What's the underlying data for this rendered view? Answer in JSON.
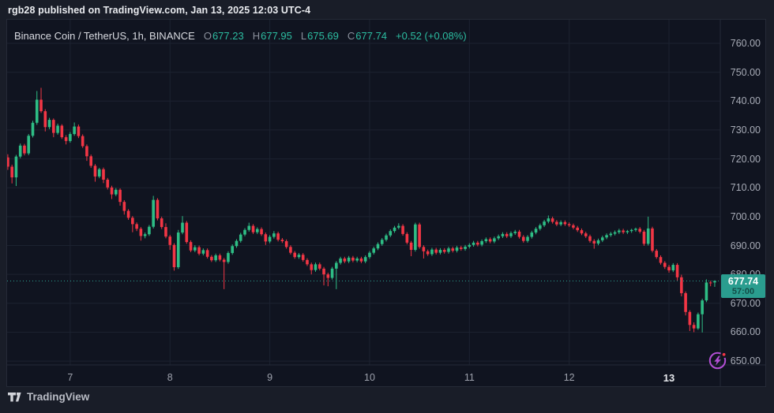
{
  "attribution": {
    "text": "rgb28 published on TradingView.com, Jan 13, 2025 12:03 UTC-4"
  },
  "legend": {
    "symbol_title": "Binance Coin / TetherUS, 1h, BINANCE",
    "ohlc": [
      {
        "label": "O",
        "value": "677.23"
      },
      {
        "label": "H",
        "value": "677.95"
      },
      {
        "label": "L",
        "value": "675.69"
      },
      {
        "label": "C",
        "value": "677.74"
      }
    ],
    "change": "+0.52 (+0.08%)"
  },
  "price_tag": {
    "price": "677.74",
    "countdown": "57:00"
  },
  "footer": {
    "brand": "TradingView"
  },
  "icons": {
    "pulse": "market-pulse-icon",
    "badge": "red-dot-badge",
    "logo": "tradingview-logo"
  },
  "colors": {
    "up": "#2ebd85",
    "down": "#f23645",
    "label_bg": "#2a9d8f",
    "grid": "#1c2230",
    "axis_border": "#252a37",
    "icon_purple": "#b44fd6",
    "badge_red": "#f23645"
  },
  "chart_data": {
    "type": "candlestick",
    "symbol": "Binance Coin / TetherUS",
    "interval": "1h",
    "exchange": "BINANCE",
    "ylim": [
      650,
      760
    ],
    "y_ticks": [
      760,
      750,
      740,
      730,
      720,
      710,
      700,
      690,
      680,
      670,
      660,
      650
    ],
    "y_tick_labels": [
      "760.00",
      "750.00",
      "740.00",
      "730.00",
      "720.00",
      "710.00",
      "700.00",
      "690.00",
      "680.00",
      "670.00",
      "660.00",
      "650.00"
    ],
    "x_ticks": [
      {
        "label": "7",
        "index": 15,
        "bold": false
      },
      {
        "label": "8",
        "index": 39,
        "bold": false
      },
      {
        "label": "9",
        "index": 63,
        "bold": false
      },
      {
        "label": "10",
        "index": 87,
        "bold": false
      },
      {
        "label": "11",
        "index": 111,
        "bold": false
      },
      {
        "label": "12",
        "index": 135,
        "bold": false
      },
      {
        "label": "13",
        "index": 159,
        "bold": true
      }
    ],
    "current_price": 677.74,
    "grid": true,
    "candles": [
      [
        720.5,
        721.6,
        716.2,
        717.3
      ],
      [
        717.3,
        718.0,
        711.5,
        713.6
      ],
      [
        713.6,
        721.4,
        710.6,
        720.8
      ],
      [
        720.8,
        725.3,
        720.2,
        724.6
      ],
      [
        724.6,
        725.2,
        721.2,
        721.9
      ],
      [
        721.9,
        728.6,
        721.3,
        728.0
      ],
      [
        728.0,
        733.2,
        727.4,
        732.5
      ],
      [
        732.5,
        743.5,
        731.8,
        740.5
      ],
      [
        740.5,
        744.6,
        735.9,
        736.5
      ],
      [
        736.5,
        737.2,
        729.5,
        731.0
      ],
      [
        731.0,
        734.2,
        730.3,
        733.5
      ],
      [
        733.5,
        734.0,
        727.5,
        729.0
      ],
      [
        729.0,
        732.2,
        728.4,
        731.5
      ],
      [
        731.5,
        732.0,
        726.9,
        727.5
      ],
      [
        727.5,
        728.2,
        725.0,
        726.2
      ],
      [
        726.2,
        729.3,
        725.6,
        728.6
      ],
      [
        728.6,
        732.6,
        728.0,
        731.2
      ],
      [
        731.2,
        731.9,
        727.2,
        727.9
      ],
      [
        727.9,
        728.5,
        723.8,
        724.4
      ],
      [
        724.4,
        725.0,
        719.3,
        720.9
      ],
      [
        720.9,
        721.5,
        716.9,
        717.6
      ],
      [
        717.6,
        718.2,
        712.1,
        713.9
      ],
      [
        713.9,
        716.9,
        713.3,
        716.4
      ],
      [
        716.4,
        717.0,
        711.6,
        712.8
      ],
      [
        712.8,
        713.4,
        709.4,
        710.1
      ],
      [
        710.1,
        710.7,
        706.1,
        707.7
      ],
      [
        707.7,
        709.9,
        707.1,
        709.3
      ],
      [
        709.3,
        709.8,
        703.8,
        705.1
      ],
      [
        705.1,
        705.7,
        700.7,
        702.0
      ],
      [
        702.0,
        702.6,
        698.9,
        699.6
      ],
      [
        699.6,
        700.2,
        694.6,
        697.4
      ],
      [
        697.4,
        698.0,
        695.0,
        695.8
      ],
      [
        695.8,
        696.4,
        691.7,
        693.3
      ],
      [
        693.3,
        694.5,
        692.5,
        693.9
      ],
      [
        693.9,
        697.1,
        693.3,
        696.5
      ],
      [
        696.5,
        707.2,
        695.9,
        705.8
      ],
      [
        705.8,
        706.4,
        698.7,
        699.4
      ],
      [
        699.4,
        700.0,
        695.7,
        696.4
      ],
      [
        696.4,
        697.7,
        692.5,
        693.1
      ],
      [
        693.1,
        693.7,
        688.5,
        690.2
      ],
      [
        690.2,
        690.8,
        681.3,
        682.5
      ],
      [
        682.5,
        695.4,
        681.9,
        694.5
      ],
      [
        694.5,
        700.2,
        693.9,
        697.9
      ],
      [
        697.9,
        698.5,
        690.6,
        691.2
      ],
      [
        691.2,
        691.8,
        687.7,
        688.3
      ],
      [
        688.3,
        690.1,
        687.7,
        689.4
      ],
      [
        689.4,
        690.0,
        686.6,
        687.2
      ],
      [
        687.2,
        689.0,
        686.6,
        688.4
      ],
      [
        688.4,
        689.0,
        685.5,
        686.1
      ],
      [
        686.1,
        686.7,
        684.3,
        684.9
      ],
      [
        684.9,
        687.2,
        684.3,
        686.6
      ],
      [
        686.6,
        687.2,
        684.5,
        685.1
      ],
      [
        685.1,
        685.7,
        674.9,
        684.3
      ],
      [
        684.3,
        688.0,
        683.7,
        687.4
      ],
      [
        687.4,
        690.4,
        686.8,
        689.8
      ],
      [
        689.8,
        692.2,
        689.2,
        691.6
      ],
      [
        691.6,
        694.4,
        691.0,
        693.8
      ],
      [
        693.8,
        696.0,
        693.2,
        695.4
      ],
      [
        695.4,
        697.9,
        694.8,
        696.8
      ],
      [
        696.8,
        697.4,
        694.0,
        694.6
      ],
      [
        694.6,
        696.3,
        694.0,
        695.7
      ],
      [
        695.7,
        696.3,
        693.3,
        693.9
      ],
      [
        693.9,
        694.5,
        690.2,
        691.4
      ],
      [
        691.4,
        693.6,
        690.8,
        693.0
      ],
      [
        693.0,
        695.0,
        692.4,
        694.2
      ],
      [
        694.2,
        694.8,
        691.4,
        692.0
      ],
      [
        692.0,
        692.6,
        690.9,
        691.5
      ],
      [
        691.5,
        692.1,
        688.9,
        689.5
      ],
      [
        689.5,
        690.1,
        686.9,
        687.5
      ],
      [
        687.5,
        688.1,
        685.4,
        686.0
      ],
      [
        686.0,
        687.4,
        685.4,
        686.8
      ],
      [
        686.8,
        687.4,
        684.4,
        685.0
      ],
      [
        685.0,
        685.6,
        682.9,
        683.5
      ],
      [
        683.5,
        684.1,
        680.0,
        681.5
      ],
      [
        681.5,
        684.1,
        680.9,
        683.5
      ],
      [
        683.5,
        684.1,
        681.4,
        682.0
      ],
      [
        682.0,
        682.6,
        676.2,
        680.0
      ],
      [
        680.0,
        680.6,
        675.9,
        678.8
      ],
      [
        678.8,
        682.6,
        678.2,
        682.0
      ],
      [
        682.0,
        684.6,
        674.9,
        684.0
      ],
      [
        684.0,
        686.1,
        683.4,
        685.5
      ],
      [
        685.5,
        686.1,
        683.9,
        684.5
      ],
      [
        684.5,
        686.4,
        683.9,
        685.8
      ],
      [
        685.8,
        686.4,
        684.2,
        684.8
      ],
      [
        684.8,
        686.1,
        684.2,
        685.5
      ],
      [
        685.5,
        686.1,
        683.9,
        684.5
      ],
      [
        684.5,
        686.6,
        683.9,
        686.0
      ],
      [
        686.0,
        688.1,
        685.4,
        687.5
      ],
      [
        687.5,
        689.6,
        686.9,
        689.0
      ],
      [
        689.0,
        691.1,
        688.4,
        690.5
      ],
      [
        690.5,
        692.6,
        689.9,
        692.0
      ],
      [
        692.0,
        694.1,
        691.4,
        693.5
      ],
      [
        693.5,
        695.6,
        692.9,
        695.0
      ],
      [
        695.0,
        696.8,
        694.4,
        696.2
      ],
      [
        696.2,
        697.7,
        695.6,
        696.8
      ],
      [
        696.8,
        697.4,
        693.4,
        694.0
      ],
      [
        694.0,
        694.6,
        690.4,
        691.0
      ],
      [
        691.0,
        691.6,
        686.3,
        688.5
      ],
      [
        688.5,
        697.9,
        687.9,
        697.3
      ],
      [
        697.3,
        697.9,
        688.9,
        689.5
      ],
      [
        689.5,
        690.1,
        685.5,
        688.0
      ],
      [
        688.0,
        688.6,
        686.4,
        687.0
      ],
      [
        687.0,
        689.2,
        686.4,
        688.6
      ],
      [
        688.6,
        689.2,
        686.9,
        687.5
      ],
      [
        687.5,
        689.1,
        686.9,
        688.5
      ],
      [
        688.5,
        689.1,
        687.2,
        687.8
      ],
      [
        687.8,
        689.6,
        687.2,
        689.0
      ],
      [
        689.0,
        689.6,
        687.6,
        688.2
      ],
      [
        688.2,
        689.9,
        687.6,
        689.3
      ],
      [
        689.3,
        689.9,
        688.2,
        688.8
      ],
      [
        688.8,
        690.2,
        688.2,
        689.6
      ],
      [
        689.6,
        690.8,
        689.0,
        690.2
      ],
      [
        690.2,
        691.6,
        689.6,
        691.0
      ],
      [
        691.0,
        691.6,
        689.7,
        690.3
      ],
      [
        690.3,
        692.1,
        689.7,
        691.5
      ],
      [
        691.5,
        692.8,
        690.9,
        692.2
      ],
      [
        692.2,
        692.8,
        690.8,
        691.4
      ],
      [
        691.4,
        693.1,
        690.8,
        692.5
      ],
      [
        692.5,
        693.8,
        691.9,
        693.2
      ],
      [
        693.2,
        694.6,
        692.6,
        694.0
      ],
      [
        694.0,
        694.6,
        692.6,
        693.2
      ],
      [
        693.2,
        694.9,
        692.6,
        694.3
      ],
      [
        694.3,
        695.4,
        693.7,
        694.8
      ],
      [
        694.8,
        695.4,
        692.4,
        693.0
      ],
      [
        693.0,
        693.6,
        691.0,
        691.6
      ],
      [
        691.6,
        693.6,
        691.0,
        693.0
      ],
      [
        693.0,
        695.1,
        692.4,
        694.5
      ],
      [
        694.5,
        696.4,
        693.9,
        695.8
      ],
      [
        695.8,
        697.6,
        695.2,
        697.0
      ],
      [
        697.0,
        698.9,
        696.4,
        698.3
      ],
      [
        698.3,
        700.4,
        697.7,
        699.4
      ],
      [
        699.4,
        700.0,
        697.6,
        698.2
      ],
      [
        698.2,
        698.8,
        696.7,
        697.3
      ],
      [
        697.3,
        698.7,
        696.7,
        698.1
      ],
      [
        698.1,
        698.7,
        696.8,
        697.4
      ],
      [
        697.4,
        698.0,
        696.4,
        697.0
      ],
      [
        697.0,
        697.6,
        695.6,
        696.2
      ],
      [
        696.2,
        696.8,
        694.7,
        695.3
      ],
      [
        695.3,
        695.9,
        693.6,
        694.2
      ],
      [
        694.2,
        694.8,
        692.6,
        693.2
      ],
      [
        693.2,
        693.8,
        691.0,
        691.6
      ],
      [
        691.6,
        692.2,
        688.9,
        690.7
      ],
      [
        690.7,
        692.4,
        690.1,
        691.8
      ],
      [
        691.8,
        693.4,
        691.2,
        692.8
      ],
      [
        692.8,
        694.2,
        692.2,
        693.6
      ],
      [
        693.6,
        694.7,
        693.0,
        694.1
      ],
      [
        694.1,
        695.2,
        693.5,
        694.6
      ],
      [
        694.6,
        695.8,
        694.0,
        695.2
      ],
      [
        695.2,
        695.8,
        694.0,
        694.6
      ],
      [
        694.6,
        695.4,
        694.0,
        695.0
      ],
      [
        695.0,
        695.8,
        694.4,
        695.4
      ],
      [
        695.4,
        696.2,
        694.8,
        695.8
      ],
      [
        695.8,
        696.4,
        694.2,
        694.8
      ],
      [
        694.8,
        695.4,
        689.9,
        690.6
      ],
      [
        690.6,
        700.0,
        690.0,
        695.9
      ],
      [
        695.9,
        696.5,
        687.6,
        688.2
      ],
      [
        688.2,
        688.8,
        685.4,
        686.0
      ],
      [
        686.0,
        686.6,
        683.4,
        684.0
      ],
      [
        684.0,
        684.6,
        681.9,
        682.6
      ],
      [
        682.6,
        683.3,
        680.6,
        681.4
      ],
      [
        681.4,
        683.9,
        680.8,
        683.3
      ],
      [
        683.3,
        683.9,
        677.9,
        679.0
      ],
      [
        679.0,
        679.9,
        672.4,
        673.5
      ],
      [
        673.5,
        674.1,
        665.8,
        667.0
      ],
      [
        667.0,
        667.6,
        660.4,
        662.5
      ],
      [
        662.5,
        663.4,
        660.0,
        661.3
      ],
      [
        661.3,
        666.8,
        660.8,
        666.2
      ],
      [
        666.2,
        671.6,
        659.9,
        671.0
      ],
      [
        671.0,
        678.3,
        670.4,
        677.2
      ],
      [
        677.2,
        677.8,
        675.9,
        677.0
      ],
      [
        677.23,
        677.95,
        675.69,
        677.74
      ]
    ]
  }
}
